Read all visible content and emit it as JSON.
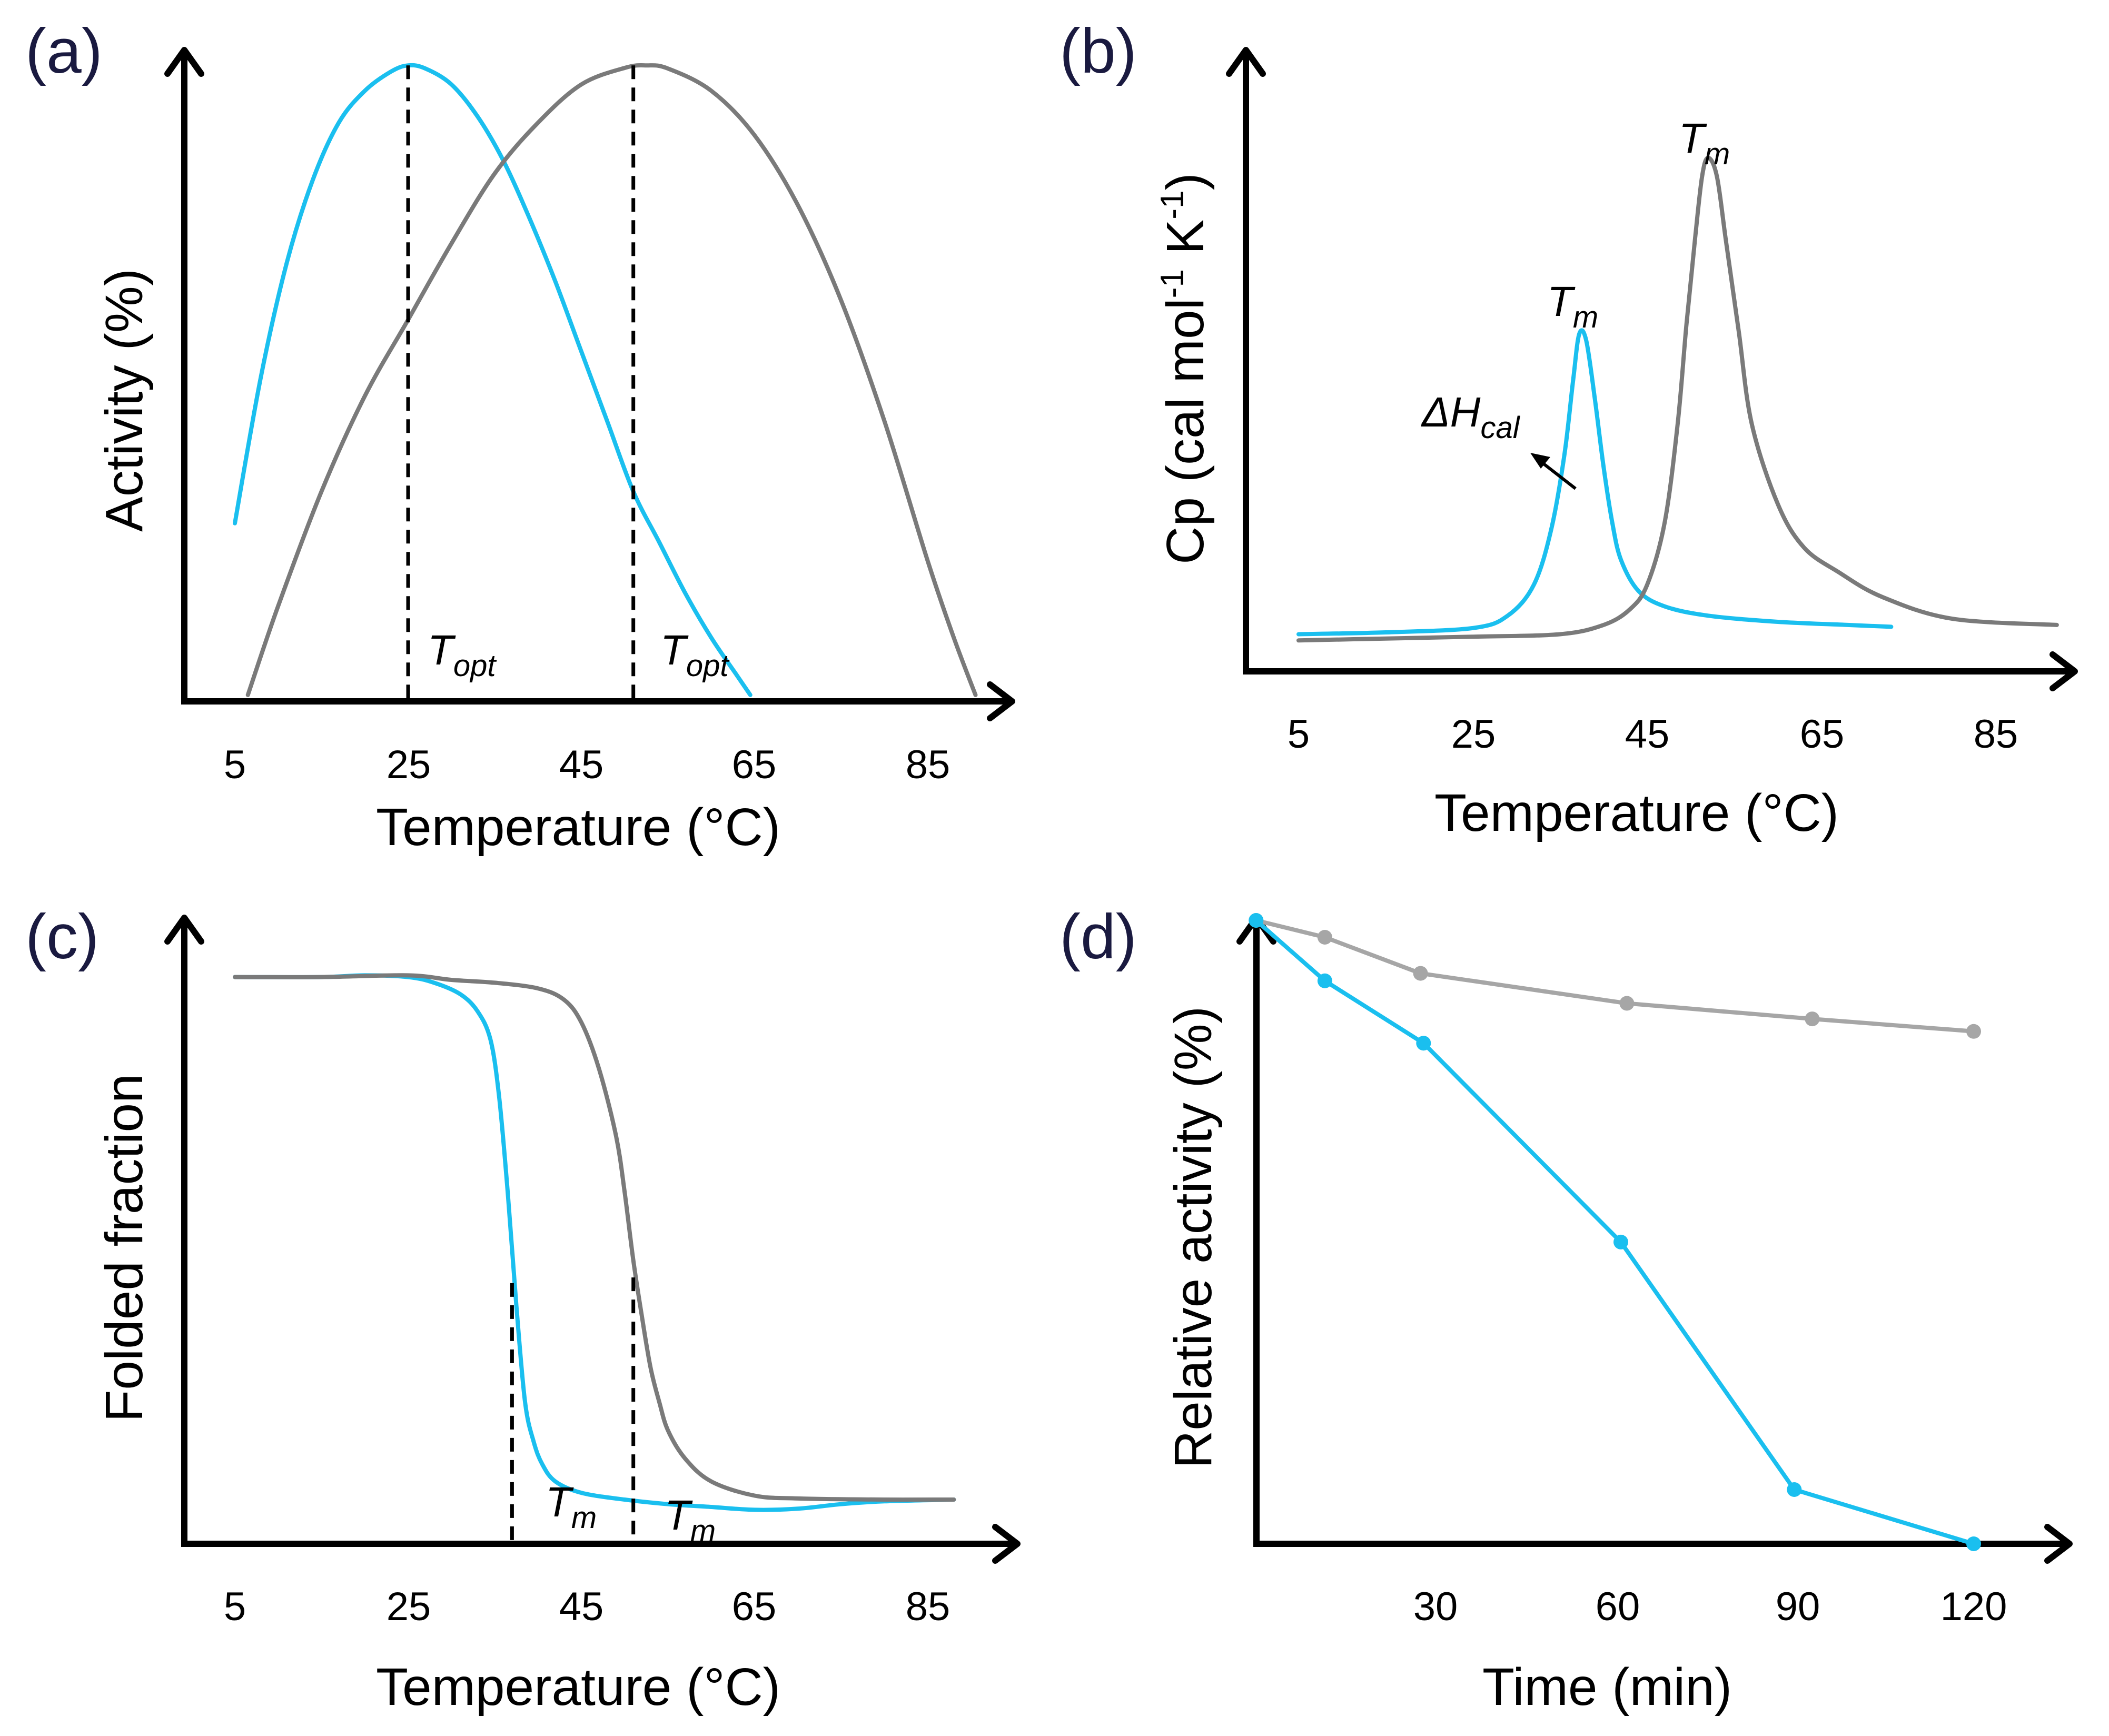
{
  "colors": {
    "blue": "#1ABFEF",
    "gray": "#7A7A7A",
    "light_gray": "#A6A6A6",
    "axis": "#000000"
  },
  "chart_data": [
    {
      "panel": "(a)",
      "type": "line",
      "xlabel": "Temperature (°C)",
      "ylabel": "Activity (%)",
      "xticks": [
        "5",
        "25",
        "45",
        "65",
        "85"
      ],
      "xlim": [
        0,
        93
      ],
      "ylim": [
        0,
        102
      ],
      "series": [
        {
          "color": "#1ABFEF",
          "x": [
            5,
            8,
            11,
            14,
            17,
            20,
            23,
            25,
            27,
            30,
            33,
            36,
            39,
            42,
            45,
            48,
            51,
            54,
            57,
            60,
            63,
            64.5
          ],
          "y": [
            28,
            51,
            69,
            82,
            91,
            96,
            99,
            100,
            99.5,
            97,
            92,
            85,
            76,
            66,
            55,
            44,
            33,
            25,
            17,
            10,
            4,
            1
          ]
        },
        {
          "color": "#7A7A7A",
          "x": [
            6.5,
            10,
            15,
            20,
            25,
            30,
            35,
            40,
            45,
            50,
            52.5,
            55,
            60,
            65,
            70,
            75,
            80,
            85,
            88,
            90.5
          ],
          "y": [
            1,
            15,
            33,
            48,
            60,
            72,
            83,
            91,
            97,
            99.6,
            100,
            99.5,
            96,
            89,
            78,
            63,
            44,
            22,
            10,
            1
          ]
        }
      ],
      "markers": [
        {
          "x": 25,
          "y_top": 100,
          "label": "T",
          "sub": "opt"
        },
        {
          "x": 51,
          "y_top": 100,
          "label": "T",
          "sub": "opt"
        }
      ]
    },
    {
      "panel": "(b)",
      "type": "line",
      "xlabel": "Temperature (°C)",
      "ylabel": "Cp (cal mol-1 K-1)",
      "xticks": [
        "5",
        "25",
        "45",
        "65",
        "85"
      ],
      "xlim": [
        0,
        93
      ],
      "ylim": [
        0,
        100
      ],
      "series": [
        {
          "color": "#1ABFEF",
          "x": [
            5,
            15,
            25,
            29,
            32,
            34,
            35.5,
            36.5,
            37.2,
            38,
            39,
            40,
            41,
            42,
            44,
            47,
            52,
            60,
            68,
            73
          ],
          "y": [
            6,
            6.3,
            7,
            9,
            14,
            23,
            35,
            47,
            54.5,
            53.5,
            44,
            33,
            24,
            18,
            13,
            10.5,
            9,
            8,
            7.5,
            7.2
          ]
        },
        {
          "color": "#7A7A7A",
          "x": [
            5,
            15,
            25,
            35,
            40,
            43,
            45,
            47,
            48.5,
            49.5,
            50.5,
            51.3,
            52,
            53,
            54,
            55.5,
            57,
            60,
            63,
            67,
            72,
            80,
            92
          ],
          "y": [
            5,
            5.3,
            5.6,
            6,
            7.5,
            10,
            14,
            24,
            40,
            56,
            70,
            80,
            83,
            80,
            70,
            55,
            40,
            27,
            20,
            16,
            12,
            8.5,
            7.5
          ]
        }
      ],
      "annotations": [
        {
          "label": "T",
          "sub": "m",
          "at": "gray peak"
        },
        {
          "label": "T",
          "sub": "m",
          "at": "blue peak"
        },
        {
          "label": "ΔH",
          "sub": "cal",
          "at": "blue peak area"
        }
      ]
    },
    {
      "panel": "(c)",
      "type": "line",
      "xlabel": "Temperature (°C)",
      "ylabel": "Folded fraction",
      "xticks": [
        "5",
        "25",
        "45",
        "65",
        "85"
      ],
      "xlim": [
        0,
        93
      ],
      "ylim": [
        0,
        110
      ],
      "series": [
        {
          "color": "#1ABFEF",
          "x": [
            5,
            15,
            20,
            25,
            28,
            31,
            33,
            34.5,
            35.5,
            36.5,
            37.5,
            38.5,
            39.5,
            40.5,
            42,
            45,
            50,
            55,
            60,
            65,
            70,
            75,
            80,
            88
          ],
          "y": [
            100,
            100,
            100.3,
            100,
            99,
            97,
            94,
            89,
            79,
            62,
            42,
            25,
            18,
            14,
            11,
            9,
            7.8,
            7,
            6.5,
            6,
            6.2,
            7,
            7.5,
            7.8
          ]
        },
        {
          "color": "#7A7A7A",
          "x": [
            5,
            15,
            25,
            30,
            35,
            40,
            43,
            45,
            47,
            49,
            50,
            51,
            52,
            53,
            54,
            55,
            57,
            60,
            65,
            70,
            80,
            88
          ],
          "y": [
            100,
            100,
            100.3,
            99.5,
            99,
            98,
            96,
            92,
            84,
            72,
            62,
            50,
            40,
            31,
            25,
            20,
            15,
            11,
            8.5,
            8,
            7.8,
            7.8
          ]
        }
      ],
      "markers": [
        {
          "x": 37,
          "y_top": 46,
          "label": "T",
          "sub": "m"
        },
        {
          "x": 51,
          "y_top": 47,
          "label": "T",
          "sub": "m"
        }
      ]
    },
    {
      "panel": "(d)",
      "type": "line",
      "xlabel": "Time (min)",
      "ylabel": "Relative activity (%)",
      "xticks": [
        "30",
        "60",
        "90",
        "120"
      ],
      "xlim": [
        0,
        138
      ],
      "ylim": [
        0,
        100
      ],
      "series": [
        {
          "color": "#A6A6A6",
          "x": [
            0,
            11.5,
            27.5,
            62,
            93,
            120
          ],
          "y": [
            100,
            97.3,
            91.5,
            86.7,
            84.2,
            82.2
          ]
        },
        {
          "color": "#1ABFEF",
          "x": [
            0,
            11.5,
            28,
            61,
            90,
            120
          ],
          "y": [
            100,
            90.3,
            80.3,
            48.4,
            8.7,
            0
          ]
        }
      ]
    }
  ]
}
